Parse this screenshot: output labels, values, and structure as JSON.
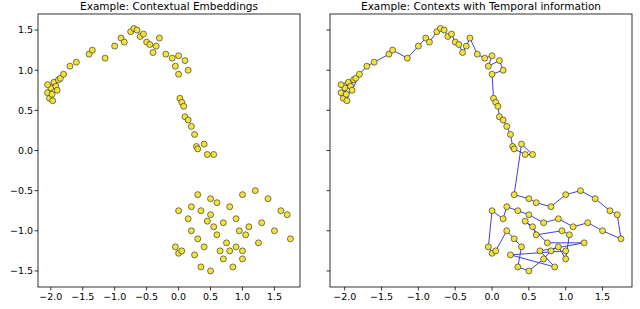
{
  "chart_data": [
    {
      "type": "scatter",
      "title": "Example: Contextual Embeddings",
      "xlim": [
        -2.2,
        1.9
      ],
      "ylim": [
        -1.7,
        1.7
      ],
      "xticks": [
        {
          "value": -2.0,
          "label": "−2.0"
        },
        {
          "value": -1.5,
          "label": "−1.5"
        },
        {
          "value": -1.0,
          "label": "−1.0"
        },
        {
          "value": -0.5,
          "label": "−0.5"
        },
        {
          "value": 0.0,
          "label": "0.0"
        },
        {
          "value": 0.5,
          "label": "0.5"
        },
        {
          "value": 1.0,
          "label": "1.0"
        },
        {
          "value": 1.5,
          "label": "1.5"
        }
      ],
      "yticks": [
        {
          "value": -1.5,
          "label": "−1.5"
        },
        {
          "value": -1.0,
          "label": "−1.0"
        },
        {
          "value": -0.5,
          "label": "−0.5"
        },
        {
          "value": 0.0,
          "label": "0.0"
        },
        {
          "value": 0.5,
          "label": "0.5"
        },
        {
          "value": 1.0,
          "label": "1.0"
        },
        {
          "value": 1.5,
          "label": "1.5"
        }
      ],
      "grid": false,
      "tick_labels": true,
      "series": [
        {
          "type": "scatter",
          "color": "#f2e33b",
          "marker": "circle",
          "x": [
            -2.05,
            -2.0,
            -1.95,
            -2.02,
            -1.97,
            -1.92,
            -1.88,
            -1.85,
            -2.05,
            -1.98,
            -1.9,
            -1.8,
            -1.7,
            -1.6,
            -1.4,
            -1.35,
            -1.15,
            -1.0,
            -0.9,
            -0.85,
            -0.75,
            -0.7,
            -0.65,
            -0.6,
            -0.55,
            -0.5,
            -0.45,
            -0.4,
            -0.35,
            -0.3,
            -0.2,
            -0.1,
            0.0,
            -0.05,
            0.1,
            0.15,
            0.0,
            0.02,
            0.05,
            0.08,
            0.1,
            0.15,
            0.2,
            0.25,
            0.28,
            0.3,
            0.45,
            0.55,
            0.4,
            0.3,
            0.5,
            0.6,
            0.8,
            1.0,
            1.2,
            1.4,
            1.6,
            1.7,
            1.75,
            1.5,
            1.3,
            1.1,
            0.9,
            0.7,
            0.5,
            0.35,
            0.2,
            0.15,
            0.0,
            -0.05,
            0.0,
            0.05,
            0.2,
            0.3,
            0.4,
            0.35,
            0.5,
            0.7,
            0.8,
            0.9,
            1.0,
            1.05,
            0.95,
            0.6,
            0.55,
            0.45,
            0.75,
            1.25,
            0.65,
            0.85,
            0.25,
            1.0
          ],
          "values": [
            0.72,
            0.78,
            0.85,
            0.65,
            0.62,
            0.8,
            0.88,
            0.9,
            0.82,
            0.7,
            0.75,
            0.95,
            1.05,
            1.1,
            1.2,
            1.25,
            1.15,
            1.3,
            1.4,
            1.35,
            1.48,
            1.52,
            1.5,
            1.42,
            1.45,
            1.35,
            1.32,
            1.22,
            1.3,
            1.4,
            1.2,
            1.15,
            1.18,
            1.05,
            1.12,
            1.0,
            0.95,
            0.65,
            0.6,
            0.55,
            0.42,
            0.38,
            0.3,
            0.2,
            0.05,
            0.02,
            -0.05,
            -0.05,
            0.08,
            -0.55,
            -0.6,
            -0.65,
            -0.7,
            -0.55,
            -0.5,
            -0.6,
            -0.75,
            -0.8,
            -1.1,
            -1.0,
            -0.9,
            -0.95,
            -0.85,
            -0.9,
            -0.8,
            -0.75,
            -0.7,
            -0.85,
            -0.75,
            -1.2,
            -1.28,
            -1.25,
            -1.0,
            -1.1,
            -1.2,
            -1.45,
            -1.5,
            -1.35,
            -1.25,
            -1.2,
            -1.35,
            -1.05,
            -1.0,
            -1.05,
            -0.95,
            -0.88,
            -1.15,
            -1.15,
            -1.25,
            -1.45,
            -1.3,
            -1.25
          ]
        }
      ]
    },
    {
      "type": "scatter",
      "title": "Example: Contexts with Temporal information",
      "xlim": [
        -2.2,
        1.9
      ],
      "ylim": [
        -1.7,
        1.7
      ],
      "xticks": [
        {
          "value": -2.0,
          "label": "−2.0"
        },
        {
          "value": -1.5,
          "label": "−1.5"
        },
        {
          "value": -1.0,
          "label": "−1.0"
        },
        {
          "value": -0.5,
          "label": "−0.5"
        },
        {
          "value": 0.0,
          "label": "0.0"
        },
        {
          "value": 0.5,
          "label": "0.5"
        },
        {
          "value": 1.0,
          "label": "1.0"
        },
        {
          "value": 1.5,
          "label": "1.5"
        }
      ],
      "yticks": [
        -1.5,
        -1.0,
        -0.5,
        0.0,
        0.5,
        1.0,
        1.5
      ],
      "grid": false,
      "tick_labels": "x",
      "series": [
        {
          "type": "line",
          "color": "#2a2ae0",
          "line_style": "solid",
          "x": [
            -2.05,
            -2.0,
            -1.95,
            -2.02,
            -1.97,
            -1.92,
            -1.88,
            -1.85,
            -2.05,
            -1.98,
            -1.9,
            -1.8,
            -1.7,
            -1.6,
            -1.4,
            -1.35,
            -1.15,
            -1.0,
            -0.9,
            -0.85,
            -0.75,
            -0.7,
            -0.65,
            -0.6,
            -0.55,
            -0.5,
            -0.45,
            -0.4,
            -0.35,
            -0.3,
            -0.2,
            -0.1,
            0.0,
            -0.05,
            0.1,
            0.15,
            0.0,
            0.02,
            0.05,
            0.08,
            0.1,
            0.15,
            0.2,
            0.25,
            0.28,
            0.3,
            0.45,
            0.55,
            0.4,
            0.3,
            0.5,
            0.6,
            0.8,
            1.0,
            1.2,
            1.4,
            1.6,
            1.7,
            1.75,
            1.5,
            1.3,
            1.1,
            0.9,
            0.7,
            0.5,
            0.35,
            0.2,
            0.15,
            0.0,
            -0.05,
            0.0,
            0.05,
            0.2,
            0.3,
            0.4,
            0.35,
            0.5,
            0.7,
            0.8,
            0.9,
            1.0,
            1.05,
            0.95,
            0.6,
            0.55,
            0.45,
            0.75,
            1.25,
            0.65,
            0.85,
            0.25,
            1.0
          ],
          "values": [
            0.72,
            0.78,
            0.85,
            0.65,
            0.62,
            0.8,
            0.88,
            0.9,
            0.82,
            0.7,
            0.75,
            0.95,
            1.05,
            1.1,
            1.2,
            1.25,
            1.15,
            1.3,
            1.4,
            1.35,
            1.48,
            1.52,
            1.5,
            1.42,
            1.45,
            1.35,
            1.32,
            1.22,
            1.3,
            1.4,
            1.2,
            1.15,
            1.18,
            1.05,
            1.12,
            1.0,
            0.95,
            0.65,
            0.6,
            0.55,
            0.42,
            0.38,
            0.3,
            0.2,
            0.05,
            0.02,
            -0.05,
            -0.05,
            0.08,
            -0.55,
            -0.6,
            -0.65,
            -0.7,
            -0.55,
            -0.5,
            -0.6,
            -0.75,
            -0.8,
            -1.1,
            -1.0,
            -0.9,
            -0.95,
            -0.85,
            -0.9,
            -0.8,
            -0.75,
            -0.7,
            -0.85,
            -0.75,
            -1.2,
            -1.28,
            -1.25,
            -1.0,
            -1.1,
            -1.2,
            -1.45,
            -1.5,
            -1.35,
            -1.25,
            -1.2,
            -1.35,
            -1.05,
            -1.0,
            -1.05,
            -0.95,
            -0.88,
            -1.15,
            -1.15,
            -1.25,
            -1.45,
            -1.3,
            -1.25
          ]
        },
        {
          "type": "scatter",
          "color": "#f2e33b",
          "marker": "circle",
          "x": [
            -2.05,
            -2.0,
            -1.95,
            -2.02,
            -1.97,
            -1.92,
            -1.88,
            -1.85,
            -2.05,
            -1.98,
            -1.9,
            -1.8,
            -1.7,
            -1.6,
            -1.4,
            -1.35,
            -1.15,
            -1.0,
            -0.9,
            -0.85,
            -0.75,
            -0.7,
            -0.65,
            -0.6,
            -0.55,
            -0.5,
            -0.45,
            -0.4,
            -0.35,
            -0.3,
            -0.2,
            -0.1,
            0.0,
            -0.05,
            0.1,
            0.15,
            0.0,
            0.02,
            0.05,
            0.08,
            0.1,
            0.15,
            0.2,
            0.25,
            0.28,
            0.3,
            0.45,
            0.55,
            0.4,
            0.3,
            0.5,
            0.6,
            0.8,
            1.0,
            1.2,
            1.4,
            1.6,
            1.7,
            1.75,
            1.5,
            1.3,
            1.1,
            0.9,
            0.7,
            0.5,
            0.35,
            0.2,
            0.15,
            0.0,
            -0.05,
            0.0,
            0.05,
            0.2,
            0.3,
            0.4,
            0.35,
            0.5,
            0.7,
            0.8,
            0.9,
            1.0,
            1.05,
            0.95,
            0.6,
            0.55,
            0.45,
            0.75,
            1.25,
            0.65,
            0.85,
            0.25,
            1.0
          ],
          "values": [
            0.72,
            0.78,
            0.85,
            0.65,
            0.62,
            0.8,
            0.88,
            0.9,
            0.82,
            0.7,
            0.75,
            0.95,
            1.05,
            1.1,
            1.2,
            1.25,
            1.15,
            1.3,
            1.4,
            1.35,
            1.48,
            1.52,
            1.5,
            1.42,
            1.45,
            1.35,
            1.32,
            1.22,
            1.3,
            1.4,
            1.2,
            1.15,
            1.18,
            1.05,
            1.12,
            1.0,
            0.95,
            0.65,
            0.6,
            0.55,
            0.42,
            0.38,
            0.3,
            0.2,
            0.05,
            0.02,
            -0.05,
            -0.05,
            0.08,
            -0.55,
            -0.6,
            -0.65,
            -0.7,
            -0.55,
            -0.5,
            -0.6,
            -0.75,
            -0.8,
            -1.1,
            -1.0,
            -0.9,
            -0.95,
            -0.85,
            -0.9,
            -0.8,
            -0.75,
            -0.7,
            -0.85,
            -0.75,
            -1.2,
            -1.28,
            -1.25,
            -1.0,
            -1.1,
            -1.2,
            -1.45,
            -1.5,
            -1.35,
            -1.25,
            -1.2,
            -1.35,
            -1.05,
            -1.0,
            -1.05,
            -0.95,
            -0.88,
            -1.15,
            -1.15,
            -1.25,
            -1.45,
            -1.3,
            -1.25
          ]
        }
      ]
    }
  ]
}
